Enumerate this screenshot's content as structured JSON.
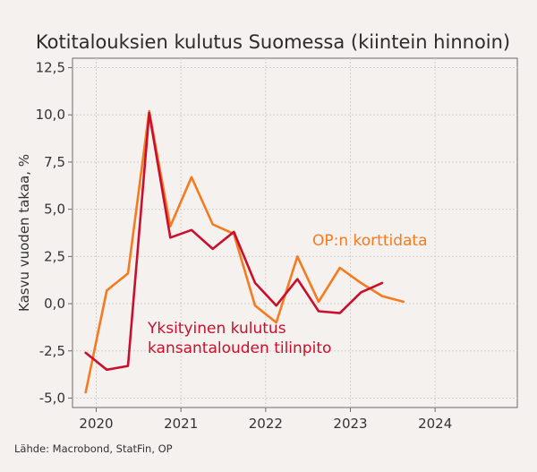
{
  "chart_data": {
    "type": "line",
    "title": "Kotitalouksien kulutus Suomessa (kiintein hinnoin)",
    "ylabel": "Kasvu vuoden takaa, %",
    "xlabel": "",
    "source": "Lähde: Macrobond, StatFin, OP",
    "ylim": [
      -5.5,
      13.0
    ],
    "xlim": [
      2019.72,
      2024.97
    ],
    "yticks": [
      -5.0,
      -2.5,
      0.0,
      2.5,
      5.0,
      7.5,
      10.0,
      12.5
    ],
    "ytick_labels": [
      "-5,0",
      "-2,5",
      "0,0",
      "2,5",
      "5,0",
      "7,5",
      "10,0",
      "12,5"
    ],
    "xticks": [
      2020,
      2021,
      2022,
      2023,
      2024
    ],
    "xtick_labels": [
      "2020",
      "2021",
      "2022",
      "2023",
      "2024"
    ],
    "grid": true,
    "series": [
      {
        "name": "OP:n korttidata",
        "color": "#f47b20",
        "x": [
          2019.875,
          2020.125,
          2020.375,
          2020.625,
          2020.875,
          2021.125,
          2021.375,
          2021.625,
          2021.875,
          2022.125,
          2022.375,
          2022.625,
          2022.875,
          2023.125,
          2023.375,
          2023.625,
          2023.875,
          2024.125
        ],
        "values": [
          -4.7,
          0.7,
          1.6,
          10.2,
          4.1,
          6.7,
          4.2,
          3.7,
          -0.1,
          -1.0,
          2.5,
          0.1,
          1.9,
          1.1,
          0.4,
          0.1,
          null,
          null
        ]
      },
      {
        "name": "Yksityinen kulutus kansantalouden tilinpito",
        "color": "#c8102e",
        "x": [
          2019.875,
          2020.125,
          2020.375,
          2020.625,
          2020.875,
          2021.125,
          2021.375,
          2021.625,
          2021.875,
          2022.125,
          2022.375,
          2022.625,
          2022.875,
          2023.125,
          2023.375
        ],
        "values": [
          -2.6,
          -3.5,
          -3.3,
          10.1,
          3.5,
          3.9,
          2.9,
          3.8,
          1.1,
          -0.1,
          1.3,
          -0.4,
          -0.5,
          0.6,
          1.1
        ]
      }
    ],
    "annotations": [
      {
        "series": 0,
        "lines": [
          "OP:n korttidata"
        ]
      },
      {
        "series": 1,
        "lines": [
          "Yksityinen kulutus",
          "kansantalouden tilinpito"
        ]
      }
    ]
  }
}
